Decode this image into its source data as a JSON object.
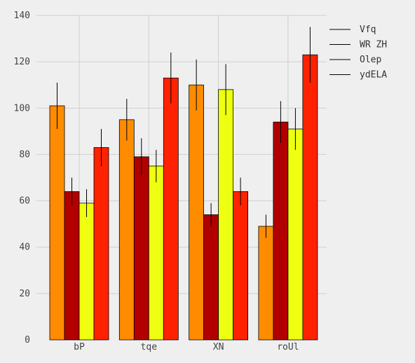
{
  "chart_data": {
    "type": "bar",
    "categories": [
      "bP",
      "tqe",
      "XN",
      "roUl"
    ],
    "series": [
      {
        "name": "Vfq",
        "color": "#ff8c00",
        "values": [
          101,
          95,
          110,
          49
        ],
        "errors": [
          10,
          9,
          11,
          5
        ]
      },
      {
        "name": "WR ZH",
        "color": "#b20000",
        "values": [
          64,
          79,
          54,
          94
        ],
        "errors": [
          6,
          8,
          5,
          9
        ]
      },
      {
        "name": "Olep",
        "color": "#eeff11",
        "values": [
          59,
          75,
          108,
          91
        ],
        "errors": [
          6,
          7,
          11,
          9
        ]
      },
      {
        "name": "ydELA",
        "color": "#ff2200",
        "values": [
          83,
          113,
          64,
          123
        ],
        "errors": [
          8,
          11,
          6,
          12
        ]
      }
    ],
    "ylim": [
      0,
      140
    ],
    "yticks": [
      0,
      20,
      40,
      60,
      80,
      100,
      120,
      140
    ],
    "grid": true,
    "legend": "top-right",
    "title": "",
    "xlabel": "",
    "ylabel": ""
  }
}
